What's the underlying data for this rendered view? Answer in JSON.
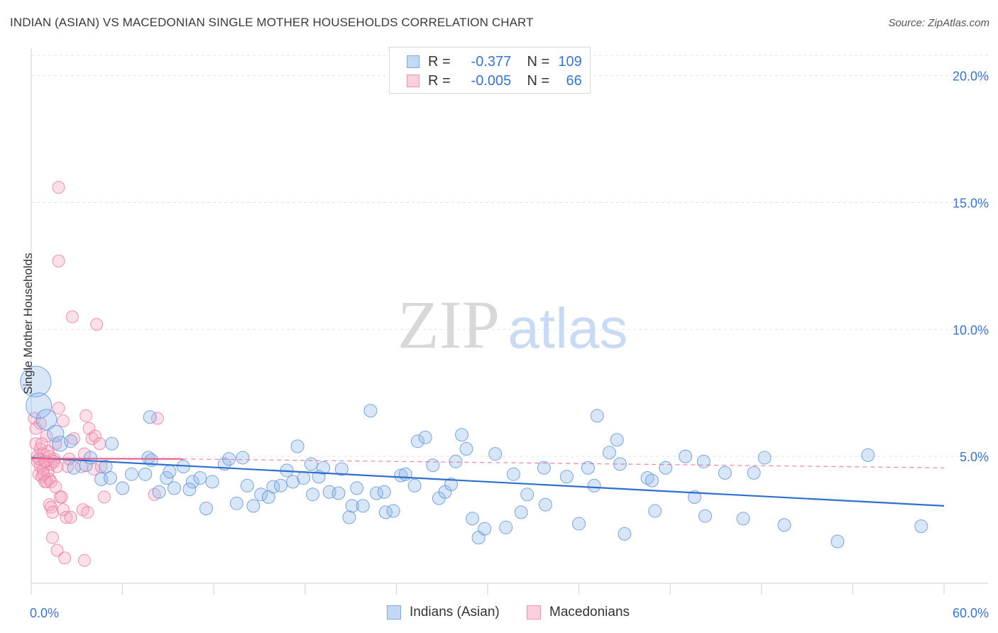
{
  "header": {
    "title": "INDIAN (ASIAN) VS MACEDONIAN SINGLE MOTHER HOUSEHOLDS CORRELATION CHART",
    "source": "Source: ZipAtlas.com"
  },
  "colors": {
    "blue": "#8fb8ea",
    "blue_stroke": "#6a9bd8",
    "blue_line": "#2f6fcf",
    "pink": "#f4a7c0",
    "pink_stroke": "#e97aa0",
    "pink_line": "#e8628f",
    "axis_text": "#3a74c9",
    "grid": "#e3e3e3"
  },
  "legend_top": {
    "rows": [
      {
        "r_label": "R =",
        "r_value": "-0.377",
        "n_label": "N =",
        "n_value": "109",
        "color": "blue"
      },
      {
        "r_label": "R =",
        "r_value": "-0.005",
        "n_label": "N =",
        "n_value": "66",
        "color": "pink"
      }
    ]
  },
  "legend_bottom": {
    "items": [
      {
        "label": "Indians (Asian)",
        "color": "blue"
      },
      {
        "label": "Macedonians",
        "color": "pink"
      }
    ]
  },
  "watermark": {
    "part1": "ZIP",
    "part2": "atlas"
  },
  "chart_data": {
    "type": "scatter",
    "title": "INDIAN (ASIAN) VS MACEDONIAN SINGLE MOTHER HOUSEHOLDS CORRELATION CHART",
    "ylabel": "Single Mother Households",
    "xlabel": "",
    "xlim": [
      0,
      60
    ],
    "ylim": [
      0,
      20.8
    ],
    "x_tick_labels": [
      "0.0%",
      "60.0%"
    ],
    "y_ticks": [
      5,
      10,
      15,
      20
    ],
    "y_tick_labels": [
      "5.0%",
      "10.0%",
      "15.0%",
      "20.0%"
    ],
    "grid": true,
    "series": [
      {
        "name": "Indians (Asian)",
        "color": "blue",
        "trend": {
          "x": [
            0,
            60
          ],
          "y": [
            4.95,
            3.05
          ]
        },
        "points": [
          {
            "x": 0.3,
            "y": 7.95,
            "s": 2.4
          },
          {
            "x": 0.5,
            "y": 7.0,
            "s": 2.0
          },
          {
            "x": 1.0,
            "y": 6.45,
            "s": 1.6
          },
          {
            "x": 1.6,
            "y": 5.9,
            "s": 1.3
          },
          {
            "x": 1.9,
            "y": 5.5,
            "s": 1.2
          },
          {
            "x": 2.6,
            "y": 5.6,
            "s": 1.0
          },
          {
            "x": 2.8,
            "y": 4.55,
            "s": 1.0
          },
          {
            "x": 3.6,
            "y": 4.65,
            "s": 1.0
          },
          {
            "x": 3.9,
            "y": 4.95,
            "s": 1.0
          },
          {
            "x": 4.6,
            "y": 4.1,
            "s": 1.0
          },
          {
            "x": 4.9,
            "y": 4.6,
            "s": 1.0
          },
          {
            "x": 5.2,
            "y": 4.15,
            "s": 1.0
          },
          {
            "x": 5.3,
            "y": 5.5,
            "s": 1.0
          },
          {
            "x": 6.0,
            "y": 3.75,
            "s": 1.0
          },
          {
            "x": 6.6,
            "y": 4.3,
            "s": 1.0
          },
          {
            "x": 7.5,
            "y": 4.3,
            "s": 1.0
          },
          {
            "x": 7.7,
            "y": 4.95,
            "s": 1.0
          },
          {
            "x": 7.9,
            "y": 4.85,
            "s": 1.0
          },
          {
            "x": 7.8,
            "y": 6.55,
            "s": 1.0
          },
          {
            "x": 8.4,
            "y": 3.6,
            "s": 1.0
          },
          {
            "x": 8.9,
            "y": 4.15,
            "s": 1.0
          },
          {
            "x": 9.1,
            "y": 4.4,
            "s": 1.0
          },
          {
            "x": 9.4,
            "y": 3.75,
            "s": 1.0
          },
          {
            "x": 10.0,
            "y": 4.6,
            "s": 1.0
          },
          {
            "x": 10.6,
            "y": 4.0,
            "s": 1.0
          },
          {
            "x": 10.4,
            "y": 3.7,
            "s": 1.0
          },
          {
            "x": 11.1,
            "y": 4.15,
            "s": 1.0
          },
          {
            "x": 11.5,
            "y": 2.95,
            "s": 1.0
          },
          {
            "x": 11.9,
            "y": 4.0,
            "s": 1.0
          },
          {
            "x": 12.7,
            "y": 4.7,
            "s": 1.0
          },
          {
            "x": 13.0,
            "y": 4.9,
            "s": 1.0
          },
          {
            "x": 13.5,
            "y": 3.15,
            "s": 1.0
          },
          {
            "x": 13.9,
            "y": 4.95,
            "s": 1.0
          },
          {
            "x": 14.2,
            "y": 3.85,
            "s": 1.0
          },
          {
            "x": 14.6,
            "y": 3.05,
            "s": 1.0
          },
          {
            "x": 15.1,
            "y": 3.5,
            "s": 1.0
          },
          {
            "x": 15.6,
            "y": 3.4,
            "s": 1.0
          },
          {
            "x": 15.9,
            "y": 3.8,
            "s": 1.0
          },
          {
            "x": 16.4,
            "y": 3.85,
            "s": 1.0
          },
          {
            "x": 16.8,
            "y": 4.45,
            "s": 1.0
          },
          {
            "x": 17.2,
            "y": 4.0,
            "s": 1.0
          },
          {
            "x": 17.5,
            "y": 5.4,
            "s": 1.0
          },
          {
            "x": 17.9,
            "y": 4.15,
            "s": 1.0
          },
          {
            "x": 18.4,
            "y": 4.7,
            "s": 1.0
          },
          {
            "x": 18.5,
            "y": 3.5,
            "s": 1.0
          },
          {
            "x": 18.9,
            "y": 4.2,
            "s": 1.0
          },
          {
            "x": 19.2,
            "y": 4.55,
            "s": 1.0
          },
          {
            "x": 19.6,
            "y": 3.6,
            "s": 1.0
          },
          {
            "x": 20.2,
            "y": 3.55,
            "s": 1.0
          },
          {
            "x": 20.4,
            "y": 4.5,
            "s": 1.0
          },
          {
            "x": 20.9,
            "y": 2.6,
            "s": 1.0
          },
          {
            "x": 21.1,
            "y": 3.05,
            "s": 1.0
          },
          {
            "x": 21.4,
            "y": 3.75,
            "s": 1.0
          },
          {
            "x": 21.8,
            "y": 3.05,
            "s": 1.0
          },
          {
            "x": 22.3,
            "y": 6.8,
            "s": 1.0
          },
          {
            "x": 22.7,
            "y": 3.55,
            "s": 1.0
          },
          {
            "x": 23.2,
            "y": 3.6,
            "s": 1.0
          },
          {
            "x": 23.3,
            "y": 2.8,
            "s": 1.0
          },
          {
            "x": 23.8,
            "y": 2.85,
            "s": 1.0
          },
          {
            "x": 24.3,
            "y": 4.25,
            "s": 1.0
          },
          {
            "x": 24.6,
            "y": 4.3,
            "s": 1.0
          },
          {
            "x": 25.2,
            "y": 3.85,
            "s": 1.0
          },
          {
            "x": 25.4,
            "y": 5.6,
            "s": 1.0
          },
          {
            "x": 25.9,
            "y": 5.75,
            "s": 1.0
          },
          {
            "x": 26.4,
            "y": 4.65,
            "s": 1.0
          },
          {
            "x": 26.8,
            "y": 3.35,
            "s": 1.0
          },
          {
            "x": 27.2,
            "y": 3.6,
            "s": 1.0
          },
          {
            "x": 27.6,
            "y": 3.9,
            "s": 1.0
          },
          {
            "x": 27.9,
            "y": 4.8,
            "s": 1.0
          },
          {
            "x": 28.3,
            "y": 5.85,
            "s": 1.0
          },
          {
            "x": 28.6,
            "y": 5.3,
            "s": 1.0
          },
          {
            "x": 29.0,
            "y": 2.55,
            "s": 1.0
          },
          {
            "x": 29.4,
            "y": 1.8,
            "s": 1.0
          },
          {
            "x": 29.8,
            "y": 2.15,
            "s": 1.0
          },
          {
            "x": 30.5,
            "y": 5.1,
            "s": 1.0
          },
          {
            "x": 31.2,
            "y": 2.2,
            "s": 1.0
          },
          {
            "x": 31.7,
            "y": 4.3,
            "s": 1.0
          },
          {
            "x": 32.2,
            "y": 2.8,
            "s": 1.0
          },
          {
            "x": 32.6,
            "y": 3.5,
            "s": 1.0
          },
          {
            "x": 33.7,
            "y": 4.55,
            "s": 1.0
          },
          {
            "x": 33.8,
            "y": 3.1,
            "s": 1.0
          },
          {
            "x": 35.2,
            "y": 4.2,
            "s": 1.0
          },
          {
            "x": 36.0,
            "y": 2.35,
            "s": 1.0
          },
          {
            "x": 36.6,
            "y": 4.55,
            "s": 1.0
          },
          {
            "x": 37.0,
            "y": 3.85,
            "s": 1.0
          },
          {
            "x": 37.2,
            "y": 6.6,
            "s": 1.0
          },
          {
            "x": 38.0,
            "y": 5.15,
            "s": 1.0
          },
          {
            "x": 38.5,
            "y": 5.65,
            "s": 1.0
          },
          {
            "x": 38.7,
            "y": 4.7,
            "s": 1.0
          },
          {
            "x": 39.0,
            "y": 1.95,
            "s": 1.0
          },
          {
            "x": 40.5,
            "y": 4.15,
            "s": 1.0
          },
          {
            "x": 40.8,
            "y": 4.05,
            "s": 1.0
          },
          {
            "x": 41.0,
            "y": 2.85,
            "s": 1.0
          },
          {
            "x": 41.7,
            "y": 4.55,
            "s": 1.0
          },
          {
            "x": 43.0,
            "y": 5.0,
            "s": 1.0
          },
          {
            "x": 43.6,
            "y": 3.4,
            "s": 1.0
          },
          {
            "x": 44.2,
            "y": 4.8,
            "s": 1.0
          },
          {
            "x": 44.3,
            "y": 2.65,
            "s": 1.0
          },
          {
            "x": 45.6,
            "y": 4.35,
            "s": 1.0
          },
          {
            "x": 46.8,
            "y": 2.55,
            "s": 1.0
          },
          {
            "x": 47.5,
            "y": 4.35,
            "s": 1.0
          },
          {
            "x": 48.2,
            "y": 4.95,
            "s": 1.0
          },
          {
            "x": 49.5,
            "y": 2.3,
            "s": 1.0
          },
          {
            "x": 53.0,
            "y": 1.65,
            "s": 1.0
          },
          {
            "x": 55.0,
            "y": 5.05,
            "s": 1.0
          },
          {
            "x": 58.5,
            "y": 2.25,
            "s": 1.0
          }
        ]
      },
      {
        "name": "Macedonians",
        "color": "pink",
        "trend": {
          "x": [
            0,
            10
          ],
          "y": [
            4.92,
            4.9
          ]
        },
        "trend_dashed": {
          "x": [
            10,
            60
          ],
          "y": [
            4.9,
            4.55
          ]
        },
        "points": [
          {
            "x": 0.2,
            "y": 6.5,
            "s": 1.0
          },
          {
            "x": 0.3,
            "y": 6.1,
            "s": 1.0
          },
          {
            "x": 0.3,
            "y": 5.5,
            "s": 1.0
          },
          {
            "x": 0.4,
            "y": 5.0,
            "s": 1.0
          },
          {
            "x": 0.4,
            "y": 4.8,
            "s": 1.0
          },
          {
            "x": 0.5,
            "y": 4.3,
            "s": 1.0
          },
          {
            "x": 0.6,
            "y": 5.3,
            "s": 1.0
          },
          {
            "x": 0.6,
            "y": 4.6,
            "s": 1.0
          },
          {
            "x": 0.7,
            "y": 4.2,
            "s": 1.0
          },
          {
            "x": 0.8,
            "y": 5.1,
            "s": 1.0
          },
          {
            "x": 0.8,
            "y": 4.5,
            "s": 1.0
          },
          {
            "x": 0.9,
            "y": 4.0,
            "s": 1.0
          },
          {
            "x": 1.0,
            "y": 5.8,
            "s": 1.0
          },
          {
            "x": 1.0,
            "y": 4.8,
            "s": 1.0
          },
          {
            "x": 1.1,
            "y": 4.4,
            "s": 1.0
          },
          {
            "x": 1.1,
            "y": 5.2,
            "s": 1.0
          },
          {
            "x": 1.2,
            "y": 4.1,
            "s": 1.0
          },
          {
            "x": 1.2,
            "y": 3.1,
            "s": 1.0
          },
          {
            "x": 1.3,
            "y": 4.7,
            "s": 1.0
          },
          {
            "x": 1.3,
            "y": 3.0,
            "s": 1.0
          },
          {
            "x": 1.4,
            "y": 2.8,
            "s": 1.0
          },
          {
            "x": 1.4,
            "y": 1.8,
            "s": 1.0
          },
          {
            "x": 1.5,
            "y": 4.9,
            "s": 1.0
          },
          {
            "x": 1.6,
            "y": 5.5,
            "s": 1.0
          },
          {
            "x": 1.7,
            "y": 4.6,
            "s": 1.0
          },
          {
            "x": 1.7,
            "y": 1.3,
            "s": 1.0
          },
          {
            "x": 1.8,
            "y": 15.6,
            "s": 1.0
          },
          {
            "x": 1.8,
            "y": 12.7,
            "s": 1.0
          },
          {
            "x": 1.8,
            "y": 6.9,
            "s": 1.0
          },
          {
            "x": 1.9,
            "y": 3.4,
            "s": 1.0
          },
          {
            "x": 2.0,
            "y": 3.4,
            "s": 1.0
          },
          {
            "x": 2.1,
            "y": 2.9,
            "s": 1.0
          },
          {
            "x": 2.1,
            "y": 6.4,
            "s": 1.0
          },
          {
            "x": 2.2,
            "y": 1.0,
            "s": 1.0
          },
          {
            "x": 2.3,
            "y": 2.6,
            "s": 1.0
          },
          {
            "x": 2.4,
            "y": 4.6,
            "s": 1.0
          },
          {
            "x": 2.6,
            "y": 2.6,
            "s": 1.0
          },
          {
            "x": 2.7,
            "y": 10.5,
            "s": 1.0
          },
          {
            "x": 2.8,
            "y": 5.7,
            "s": 1.0
          },
          {
            "x": 3.3,
            "y": 4.6,
            "s": 1.0
          },
          {
            "x": 3.4,
            "y": 2.9,
            "s": 1.0
          },
          {
            "x": 3.5,
            "y": 0.9,
            "s": 1.0
          },
          {
            "x": 3.5,
            "y": 5.1,
            "s": 1.0
          },
          {
            "x": 3.6,
            "y": 6.6,
            "s": 1.0
          },
          {
            "x": 3.7,
            "y": 2.8,
            "s": 1.0
          },
          {
            "x": 3.8,
            "y": 6.1,
            "s": 1.0
          },
          {
            "x": 4.0,
            "y": 5.7,
            "s": 1.0
          },
          {
            "x": 4.1,
            "y": 4.5,
            "s": 1.0
          },
          {
            "x": 4.2,
            "y": 5.8,
            "s": 1.0
          },
          {
            "x": 4.3,
            "y": 10.2,
            "s": 1.0
          },
          {
            "x": 4.5,
            "y": 5.5,
            "s": 1.0
          },
          {
            "x": 4.6,
            "y": 4.6,
            "s": 1.0
          },
          {
            "x": 4.8,
            "y": 3.4,
            "s": 1.0
          },
          {
            "x": 0.5,
            "y": 4.9,
            "s": 1.0
          },
          {
            "x": 0.6,
            "y": 6.3,
            "s": 1.0
          },
          {
            "x": 0.9,
            "y": 4.8,
            "s": 1.0
          },
          {
            "x": 1.0,
            "y": 4.0,
            "s": 1.0
          },
          {
            "x": 1.2,
            "y": 5.0,
            "s": 1.0
          },
          {
            "x": 1.3,
            "y": 4.0,
            "s": 1.0
          },
          {
            "x": 1.5,
            "y": 4.8,
            "s": 1.0
          },
          {
            "x": 1.6,
            "y": 3.8,
            "s": 1.0
          },
          {
            "x": 8.3,
            "y": 6.5,
            "s": 1.0
          },
          {
            "x": 8.1,
            "y": 3.5,
            "s": 1.0
          },
          {
            "x": 0.7,
            "y": 5.5,
            "s": 1.0
          },
          {
            "x": 0.8,
            "y": 4.3,
            "s": 1.0
          },
          {
            "x": 2.5,
            "y": 4.9,
            "s": 1.0
          }
        ]
      }
    ]
  }
}
